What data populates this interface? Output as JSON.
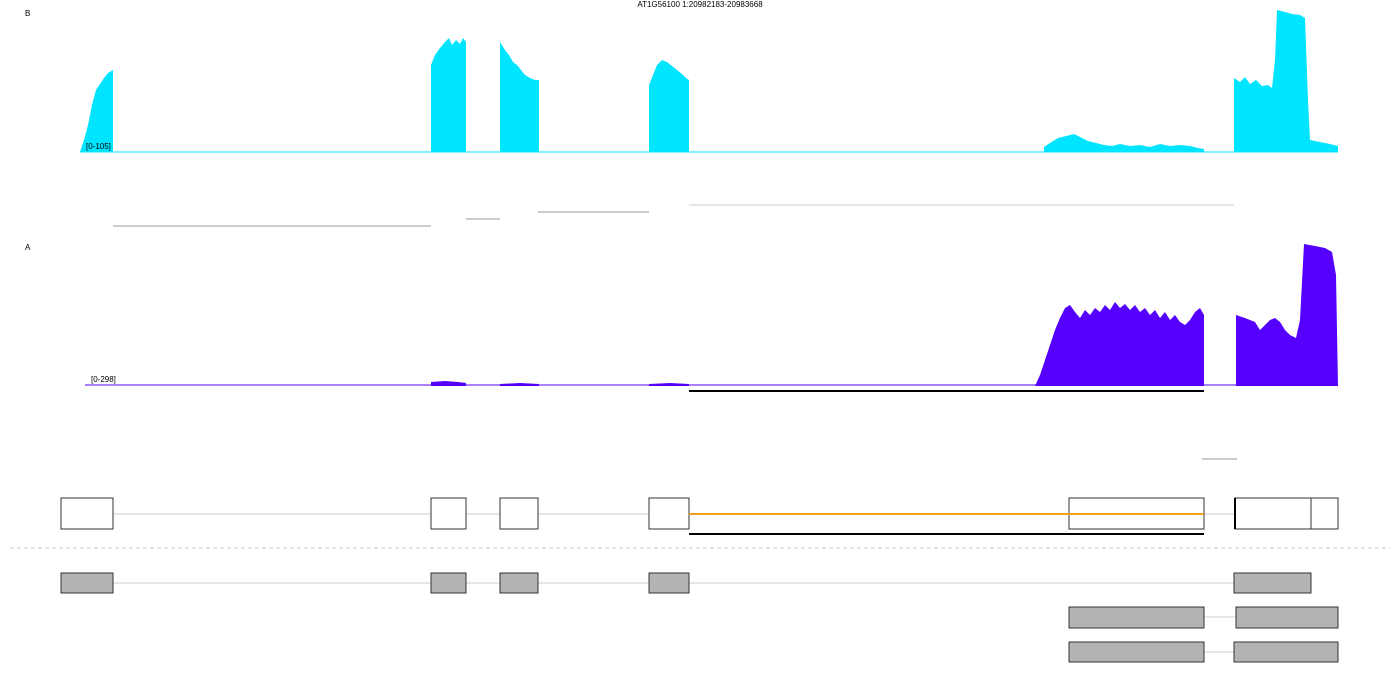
{
  "header": {
    "title": "AT1G56100 1:20982183-20983668"
  },
  "tracks": [
    {
      "label": "B",
      "range": "[0-105]"
    },
    {
      "label": "A",
      "range": "[0-298]"
    }
  ]
}
